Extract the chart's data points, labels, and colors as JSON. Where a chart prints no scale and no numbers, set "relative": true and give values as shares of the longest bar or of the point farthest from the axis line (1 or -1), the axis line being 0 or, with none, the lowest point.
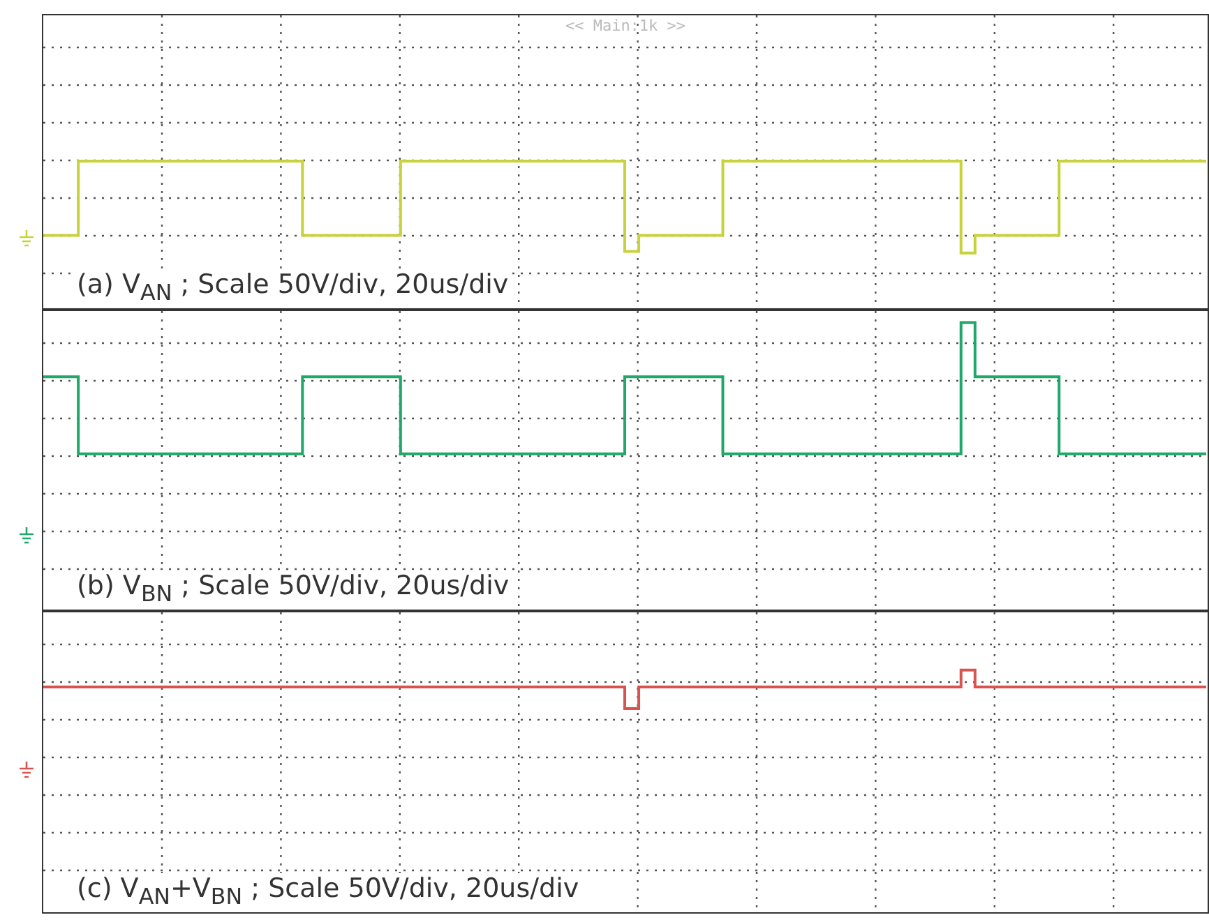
{
  "chart_data": [
    {
      "type": "step",
      "relative": true,
      "grid": true,
      "tick_labels": false,
      "categories": [
        null,
        null,
        null,
        null,
        null,
        null,
        null,
        null,
        null,
        null,
        null,
        null,
        null,
        null,
        null,
        null,
        null,
        null,
        null,
        null,
        null,
        null,
        null,
        null,
        null,
        null,
        null,
        null,
        null,
        null,
        null,
        null,
        null,
        null,
        null,
        null,
        null,
        null,
        null,
        null,
        null,
        null,
        null,
        null,
        null,
        null,
        null,
        null,
        null,
        null,
        null,
        null,
        null,
        null,
        null,
        null,
        null,
        null,
        null,
        null,
        null,
        null,
        null,
        null,
        null,
        null,
        null,
        null,
        null,
        null,
        null,
        null,
        null,
        null,
        null,
        null,
        null,
        null,
        null,
        null,
        null,
        null,
        null,
        null
      ],
      "series": [
        {
          "color": "#c8d23a",
          "values": [
            0.49,
            0.49,
            0.49,
            1,
            1,
            1,
            1,
            1,
            1,
            1,
            1,
            1,
            1,
            1,
            1,
            1,
            1,
            1,
            1,
            0.49,
            0.49,
            0.49,
            0.49,
            0.49,
            0.49,
            0.49,
            1,
            1,
            1,
            1,
            1,
            1,
            1,
            1,
            1,
            1,
            1,
            1,
            1,
            1,
            1,
            1,
            0.38,
            0.49,
            0.49,
            0.49,
            0.49,
            0.49,
            0.49,
            1,
            1,
            1,
            1,
            1,
            1,
            1,
            1,
            1,
            1,
            1,
            1,
            1,
            1,
            1,
            1,
            1,
            0.37,
            0.49,
            0.49,
            0.49,
            0.49,
            0.49,
            0.49,
            1,
            1,
            1,
            1,
            1,
            1,
            1,
            1,
            1,
            1,
            1
          ]
        }
      ],
      "annotations": [
        "<< Main:1k >>",
        "(a)  V$_{AN}$ ; Scale 50V/div, 20us/div"
      ]
    },
    {
      "type": "step",
      "relative": true,
      "grid": true,
      "tick_labels": false,
      "categories": [
        null,
        null,
        null,
        null,
        null,
        null,
        null,
        null,
        null,
        null,
        null,
        null,
        null,
        null,
        null,
        null,
        null,
        null,
        null,
        null,
        null,
        null,
        null,
        null,
        null,
        null,
        null,
        null,
        null,
        null,
        null,
        null,
        null,
        null,
        null,
        null,
        null,
        null,
        null,
        null,
        null,
        null,
        null,
        null,
        null,
        null,
        null,
        null,
        null,
        null,
        null,
        null,
        null,
        null,
        null,
        null,
        null,
        null,
        null,
        null,
        null,
        null,
        null,
        null,
        null,
        null,
        null,
        null,
        null,
        null,
        null,
        null,
        null,
        null,
        null,
        null,
        null,
        null,
        null,
        null,
        null,
        null,
        null,
        null
      ],
      "series": [
        {
          "color": "#1fa86a",
          "values": [
            0.81,
            0.81,
            0.81,
            0.54,
            0.54,
            0.54,
            0.54,
            0.54,
            0.54,
            0.54,
            0.54,
            0.54,
            0.54,
            0.54,
            0.54,
            0.54,
            0.54,
            0.54,
            0.54,
            0.81,
            0.81,
            0.81,
            0.81,
            0.81,
            0.81,
            0.81,
            0.54,
            0.54,
            0.54,
            0.54,
            0.54,
            0.54,
            0.54,
            0.54,
            0.54,
            0.54,
            0.54,
            0.54,
            0.54,
            0.54,
            0.54,
            0.54,
            0.81,
            0.81,
            0.81,
            0.81,
            0.81,
            0.81,
            0.81,
            0.54,
            0.54,
            0.54,
            0.54,
            0.54,
            0.54,
            0.54,
            0.54,
            0.54,
            0.54,
            0.54,
            0.54,
            0.54,
            0.54,
            0.54,
            0.54,
            0.54,
            1,
            0.81,
            0.81,
            0.81,
            0.81,
            0.81,
            0.81,
            0.54,
            0.54,
            0.54,
            0.54,
            0.54,
            0.54,
            0.54,
            0.54,
            0.54,
            0.54,
            0.54
          ]
        }
      ],
      "annotations": [
        "(b)  V$_{BN}$ ; Scale 50V/div, 20us/div"
      ]
    },
    {
      "type": "step",
      "relative": true,
      "grid": true,
      "tick_labels": false,
      "categories": [
        null,
        null,
        null,
        null,
        null,
        null,
        null,
        null,
        null,
        null,
        null,
        null,
        null,
        null,
        null,
        null,
        null,
        null,
        null,
        null,
        null,
        null,
        null,
        null,
        null,
        null,
        null,
        null,
        null,
        null,
        null,
        null,
        null,
        null,
        null,
        null,
        null,
        null,
        null,
        null,
        null,
        null,
        null,
        null,
        null,
        null,
        null,
        null,
        null,
        null,
        null,
        null,
        null,
        null,
        null,
        null,
        null,
        null,
        null,
        null,
        null,
        null,
        null,
        null,
        null,
        null,
        null,
        null,
        null,
        null,
        null,
        null,
        null,
        null,
        null,
        null,
        null,
        null,
        null,
        null,
        null,
        null,
        null,
        null
      ],
      "series": [
        {
          "color": "#d9534f",
          "values": [
            0.93,
            0.93,
            0.93,
            0.93,
            0.93,
            0.93,
            0.93,
            0.93,
            0.93,
            0.93,
            0.93,
            0.93,
            0.93,
            0.93,
            0.93,
            0.93,
            0.93,
            0.93,
            0.93,
            0.93,
            0.93,
            0.93,
            0.93,
            0.93,
            0.93,
            0.93,
            0.93,
            0.93,
            0.93,
            0.93,
            0.93,
            0.93,
            0.93,
            0.93,
            0.93,
            0.93,
            0.93,
            0.93,
            0.93,
            0.93,
            0.93,
            0.93,
            0.84,
            0.93,
            0.93,
            0.93,
            0.93,
            0.93,
            0.93,
            0.93,
            0.93,
            0.93,
            0.93,
            0.93,
            0.93,
            0.93,
            0.93,
            0.93,
            0.93,
            0.93,
            0.93,
            0.93,
            0.93,
            0.93,
            0.93,
            0.93,
            1,
            0.93,
            0.93,
            0.93,
            0.93,
            0.93,
            0.93,
            0.93,
            0.93,
            0.93,
            0.93,
            0.93,
            0.93,
            0.93,
            0.93,
            0.93,
            0.93,
            0.93
          ]
        }
      ],
      "annotations": [
        "(c)  V$_{AN}$+V$_{BN}$ ; Scale 50V/div, 20us/div"
      ]
    }
  ]
}
